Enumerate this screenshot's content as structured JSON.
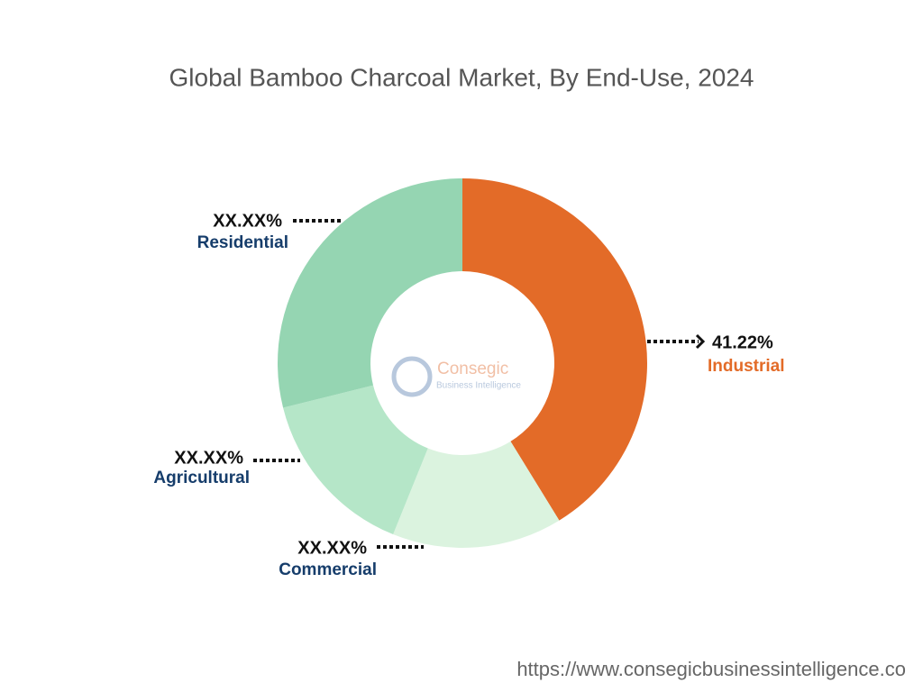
{
  "chart_data": {
    "type": "donut",
    "title": "Global Bamboo Charcoal Market, By End-Use, 2024",
    "categories": [
      "Industrial",
      "Commercial",
      "Agricultural",
      "Residential"
    ],
    "values": [
      41.22,
      14.9,
      15.0,
      28.88
    ],
    "value_labels": [
      "41.22%",
      "XX.XX%",
      "XX.XX%",
      "XX.XX%"
    ],
    "colors": [
      "#e36b28",
      "#dbf3df",
      "#b5e6c8",
      "#95d5b2"
    ]
  },
  "logo": {
    "name": "Consegic",
    "tagline": "Business Intelligence"
  },
  "footer": "https://www.consegicbusinessintelligence.co"
}
